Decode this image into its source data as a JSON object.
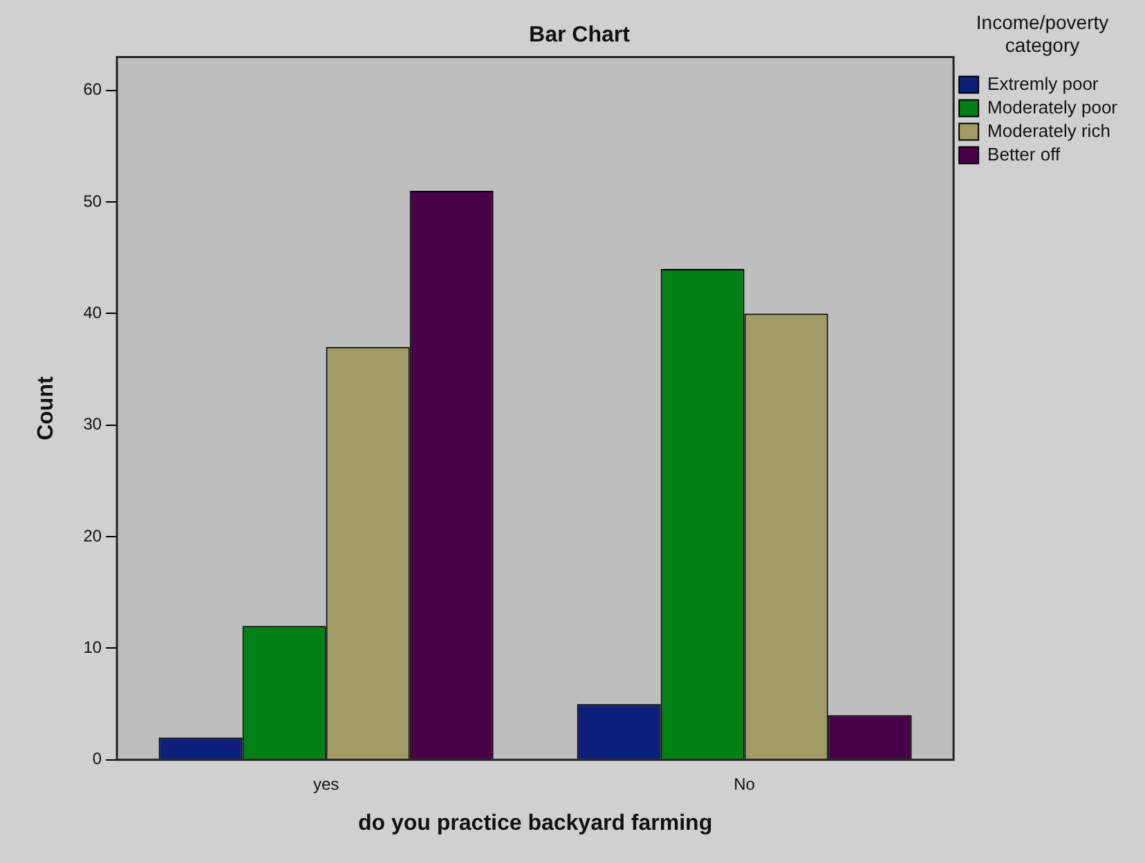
{
  "chart_data": {
    "type": "bar",
    "title": "Bar Chart",
    "xlabel": "do you practice backyard farming",
    "ylabel": "Count",
    "legend_title": "Income/poverty category",
    "categories": [
      "yes",
      "No"
    ],
    "series": [
      {
        "name": "Extremly poor",
        "color": "#0c1f7a",
        "values": [
          2,
          5
        ]
      },
      {
        "name": "Moderately poor",
        "color": "#008015",
        "values": [
          12,
          44
        ]
      },
      {
        "name": "Moderately rich",
        "color": "#a19b65",
        "values": [
          37,
          40
        ]
      },
      {
        "name": "Better off",
        "color": "#480046",
        "values": [
          51,
          4
        ]
      }
    ],
    "ylim": [
      0,
      63
    ],
    "yticks": [
      0,
      10,
      20,
      30,
      40,
      50,
      60
    ],
    "grid": false,
    "legend": "top right"
  }
}
